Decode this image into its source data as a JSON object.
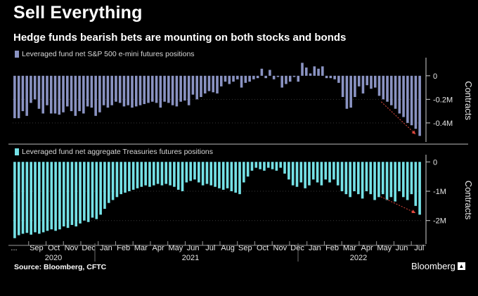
{
  "title": "Sell Everything",
  "subtitle": "Hedge funds bearish bets are mounting on both stocks and bonds",
  "source": "Source: Bloomberg, CFTC",
  "brand": "Bloomberg",
  "colors": {
    "background": "#000000",
    "sp500_series": "#8a93c2",
    "treasuries_series": "#75e1e6",
    "annotation_arrow": "#e0483e"
  },
  "chart_data": [
    {
      "type": "bar",
      "legend": "Leveraged fund net S&P 500 e-mini futures positions",
      "ylabel": "Contracts",
      "yticks": [
        0,
        -0.2,
        -0.4
      ],
      "ytick_labels": [
        "0",
        "-0.2M",
        "-0.4M"
      ],
      "ylim": [
        -0.55,
        0.13
      ],
      "unit": "million contracts",
      "frequency": "weekly",
      "series": [
        {
          "values": [
            -0.36,
            -0.36,
            -0.3,
            -0.34,
            -0.23,
            -0.2,
            -0.28,
            -0.32,
            -0.25,
            -0.32,
            -0.32,
            -0.33,
            -0.31,
            -0.26,
            -0.3,
            -0.34,
            -0.3,
            -0.32,
            -0.26,
            -0.27,
            -0.34,
            -0.31,
            -0.25,
            -0.27,
            -0.25,
            -0.22,
            -0.23,
            -0.26,
            -0.25,
            -0.27,
            -0.26,
            -0.25,
            -0.24,
            -0.23,
            -0.22,
            -0.23,
            -0.27,
            -0.22,
            -0.23,
            -0.25,
            -0.26,
            -0.22,
            -0.21,
            -0.25,
            -0.16,
            -0.2,
            -0.18,
            -0.15,
            -0.13,
            -0.14,
            -0.15,
            -0.09,
            -0.05,
            -0.07,
            -0.05,
            -0.03,
            -0.1,
            -0.06,
            -0.05,
            -0.03,
            -0.02,
            0.06,
            -0.02,
            0.05,
            -0.03,
            -0.01,
            -0.1,
            -0.07,
            -0.05,
            -0.01,
            -0.05,
            0.11,
            0.07,
            0.02,
            0.08,
            0.06,
            0.08,
            -0.02,
            -0.02,
            -0.03,
            -0.06,
            -0.18,
            -0.28,
            -0.27,
            -0.18,
            -0.09,
            -0.15,
            -0.08,
            -0.11,
            -0.1,
            -0.17,
            -0.2,
            -0.22,
            -0.25,
            -0.28,
            -0.32,
            -0.35,
            -0.4,
            -0.42,
            -0.45,
            -0.51
          ]
        }
      ]
    },
    {
      "type": "bar",
      "legend": "Leveraged fund net aggregate Treasuries futures positions",
      "ylabel": "Contracts",
      "yticks": [
        0,
        -1,
        -2
      ],
      "ytick_labels": [
        "0",
        "-1M",
        "-2M"
      ],
      "ylim": [
        -2.75,
        0.15
      ],
      "unit": "million contracts",
      "frequency": "weekly",
      "x_axis": {
        "months": [
          "...",
          "Sep",
          "Oct",
          "Nov",
          "Dec",
          "Jan",
          "Feb",
          "Mar",
          "Apr",
          "May",
          "Jun",
          "Jul",
          "Aug",
          "Sep",
          "Oct",
          "Nov",
          "Dec",
          "Jan",
          "Feb",
          "Mar",
          "Apr",
          "May",
          "Jun",
          "Jul"
        ],
        "years": [
          "2020",
          "2021",
          "2022"
        ]
      },
      "series": [
        {
          "values": [
            -2.6,
            -2.5,
            -2.45,
            -2.42,
            -2.48,
            -2.4,
            -2.45,
            -2.4,
            -2.35,
            -2.3,
            -2.35,
            -2.3,
            -2.2,
            -2.25,
            -2.15,
            -2.2,
            -2.1,
            -2.0,
            -2.05,
            -1.9,
            -1.95,
            -1.8,
            -1.6,
            -1.4,
            -1.3,
            -1.2,
            -1.1,
            -1.05,
            -1.0,
            -0.95,
            -0.9,
            -0.85,
            -0.8,
            -0.85,
            -0.8,
            -0.75,
            -0.8,
            -0.75,
            -0.8,
            -0.85,
            -0.95,
            -1.0,
            -0.7,
            -0.65,
            -0.6,
            -0.7,
            -0.8,
            -0.75,
            -0.8,
            -0.85,
            -0.9,
            -0.95,
            -0.9,
            -1.0,
            -1.05,
            -1.1,
            -0.7,
            -0.5,
            -0.3,
            -0.2,
            -0.25,
            -0.3,
            -0.2,
            -0.25,
            -0.3,
            -0.2,
            -0.4,
            -0.6,
            -0.8,
            -0.85,
            -0.7,
            -0.9,
            -0.8,
            -0.6,
            -0.7,
            -0.8,
            -0.6,
            -0.7,
            -0.6,
            -0.8,
            -1.0,
            -1.1,
            -1.2,
            -1.0,
            -1.1,
            -1.25,
            -1.0,
            -1.1,
            -1.3,
            -1.2,
            -1.1,
            -1.3,
            -1.2,
            -1.35,
            -1.0,
            -1.2,
            -1.3,
            -1.1,
            -1.5,
            -1.8
          ]
        }
      ]
    }
  ]
}
